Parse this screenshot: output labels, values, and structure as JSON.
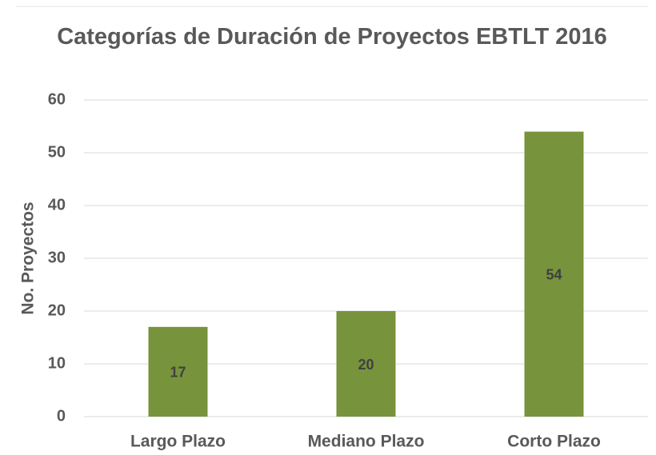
{
  "chart_data": {
    "type": "bar",
    "title": "Categorías de Duración de Proyectos EBTLT 2016",
    "ylabel": "No. Proyectos",
    "categories": [
      "Largo Plazo",
      "Mediano Plazo",
      "Corto Plazo"
    ],
    "values": [
      17,
      20,
      54
    ],
    "color": "#77933c",
    "ylim": [
      0,
      60
    ],
    "yticks": [
      0,
      10,
      20,
      30,
      40,
      50,
      60
    ],
    "grid": true
  }
}
